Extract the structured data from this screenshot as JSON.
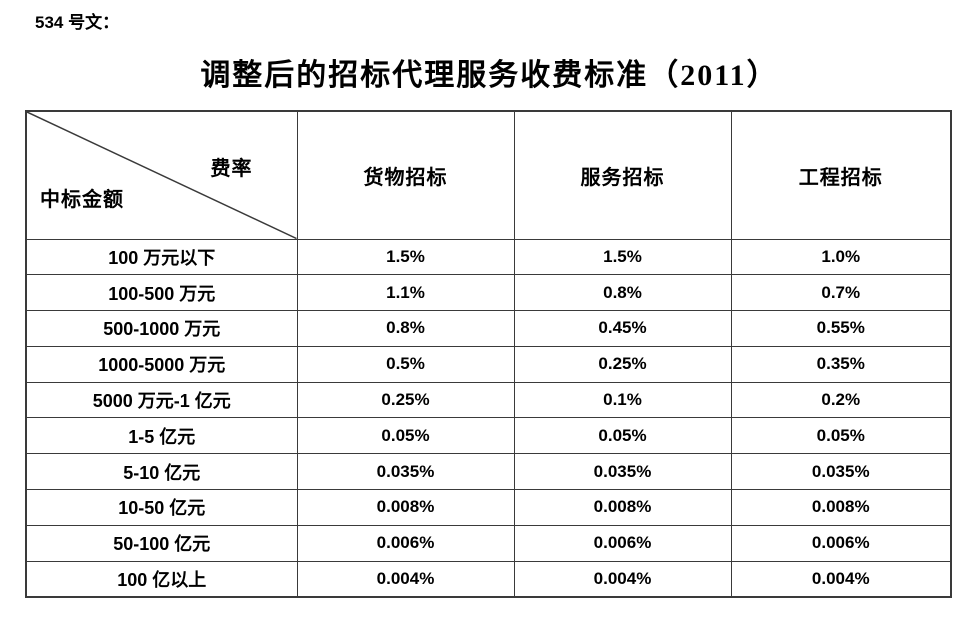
{
  "doc_label": "534 号文：",
  "title": "调整后的招标代理服务收费标准（2011）",
  "table": {
    "corner": {
      "top_right": "费率",
      "bottom_left": "中标金额"
    },
    "columns": [
      "货物招标",
      "服务招标",
      "工程招标"
    ],
    "rows": [
      {
        "label": "100 万元以下",
        "values": [
          "1.5%",
          "1.5%",
          "1.0%"
        ]
      },
      {
        "label": "100-500 万元",
        "values": [
          "1.1%",
          "0.8%",
          "0.7%"
        ]
      },
      {
        "label": "500-1000 万元",
        "values": [
          "0.8%",
          "0.45%",
          "0.55%"
        ]
      },
      {
        "label": "1000-5000 万元",
        "values": [
          "0.5%",
          "0.25%",
          "0.35%"
        ]
      },
      {
        "label": "5000 万元-1 亿元",
        "values": [
          "0.25%",
          "0.1%",
          "0.2%"
        ]
      },
      {
        "label": "1-5 亿元",
        "values": [
          "0.05%",
          "0.05%",
          "0.05%"
        ]
      },
      {
        "label": "5-10 亿元",
        "values": [
          "0.035%",
          "0.035%",
          "0.035%"
        ]
      },
      {
        "label": "10-50 亿元",
        "values": [
          "0.008%",
          "0.008%",
          "0.008%"
        ]
      },
      {
        "label": "50-100 亿元",
        "values": [
          "0.006%",
          "0.006%",
          "0.006%"
        ]
      },
      {
        "label": "100 亿以上",
        "values": [
          "0.004%",
          "0.004%",
          "0.004%"
        ]
      }
    ]
  },
  "colors": {
    "background": "#ffffff",
    "text": "#000000",
    "border": "#3a3a3a"
  }
}
